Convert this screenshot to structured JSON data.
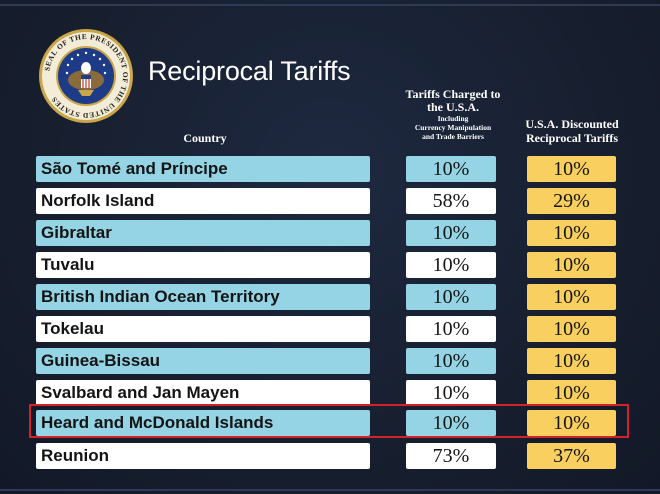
{
  "title": "Reciprocal Tariffs",
  "seal": {
    "ring_text": "SEAL OF THE PRESIDENT OF THE UNITED STATES",
    "colors": {
      "ring": "#c9a64a",
      "field": "#1d3b86",
      "eagle": "#8a6b3a"
    }
  },
  "headers": {
    "country": "Country",
    "charged_main": "Tariffs Charged to the U.S.A.",
    "charged_sub1": "Including",
    "charged_sub2": "Currency Manipulation",
    "charged_sub3": "and Trade Barriers",
    "discounted": "U.S.A. Discounted Reciprocal Tariffs"
  },
  "colors": {
    "background": "#161d2c",
    "row_blue": "#94d4e4",
    "row_white": "#ffffff",
    "discount_gold": "#f9cf5f",
    "highlight_red": "#d2232a"
  },
  "rows": [
    {
      "country": "São Tomé and Príncipe",
      "charged": "10%",
      "discounted": "10%",
      "style": "blue"
    },
    {
      "country": "Norfolk Island",
      "charged": "58%",
      "discounted": "29%",
      "style": "white"
    },
    {
      "country": "Gibraltar",
      "charged": "10%",
      "discounted": "10%",
      "style": "blue"
    },
    {
      "country": "Tuvalu",
      "charged": "10%",
      "discounted": "10%",
      "style": "white"
    },
    {
      "country": "British Indian Ocean Territory",
      "charged": "10%",
      "discounted": "10%",
      "style": "blue"
    },
    {
      "country": "Tokelau",
      "charged": "10%",
      "discounted": "10%",
      "style": "white"
    },
    {
      "country": "Guinea-Bissau",
      "charged": "10%",
      "discounted": "10%",
      "style": "blue"
    },
    {
      "country": "Svalbard and Jan Mayen",
      "charged": "10%",
      "discounted": "10%",
      "style": "white"
    },
    {
      "country": "Heard and McDonald Islands",
      "charged": "10%",
      "discounted": "10%",
      "style": "blue",
      "highlighted": true
    },
    {
      "country": "Reunion",
      "charged": "73%",
      "discounted": "37%",
      "style": "white"
    }
  ]
}
